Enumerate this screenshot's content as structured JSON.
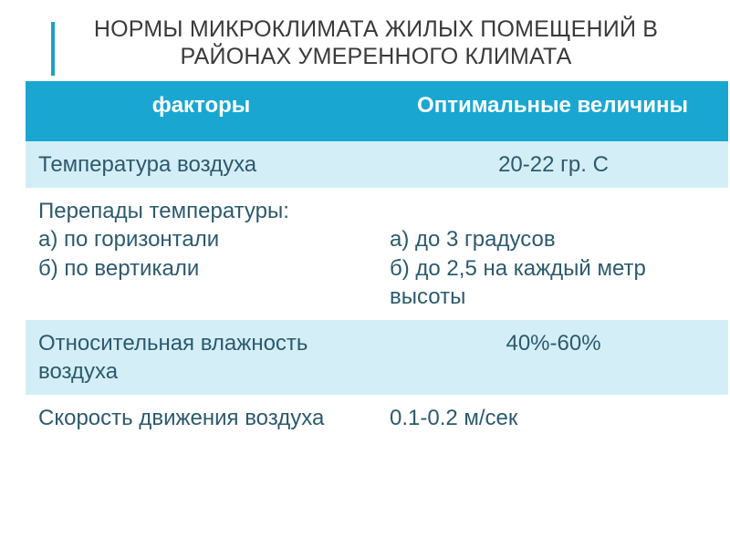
{
  "slide": {
    "title": "НОРМЫ МИКРОКЛИМАТА ЖИЛЫХ ПОМЕЩЕНИЙ В РАЙОНАХ УМЕРЕННОГО КЛИМАТА",
    "accent_color": "#1f9fc6",
    "header_bg": "#19a7d2",
    "header_text_color": "#ffffff",
    "band_bg": "#d4eef7",
    "cell_text_color": "#2c5a6e",
    "table": {
      "columns": [
        "факторы",
        "Оптимальные величины"
      ],
      "column_widths": [
        0.5,
        0.5
      ],
      "rows": [
        {
          "band": true,
          "factor": "Температура воздуха",
          "value": "20-22 гр. С",
          "value_align": "center"
        },
        {
          "band": false,
          "factor": "Перепады температуры:\n а) по горизонтали\n б) по вертикали",
          "value": "\nа) до 3 градусов\nб) до 2,5 на каждый метр высоты",
          "value_align": "left"
        },
        {
          "band": true,
          "factor": "Относительная влажность воздуха",
          "value": "40%-60%",
          "value_align": "center"
        },
        {
          "band": false,
          "factor": "Скорость движения воздуха",
          "value": "0.1-0.2 м/сек",
          "value_align": "left"
        }
      ]
    }
  }
}
